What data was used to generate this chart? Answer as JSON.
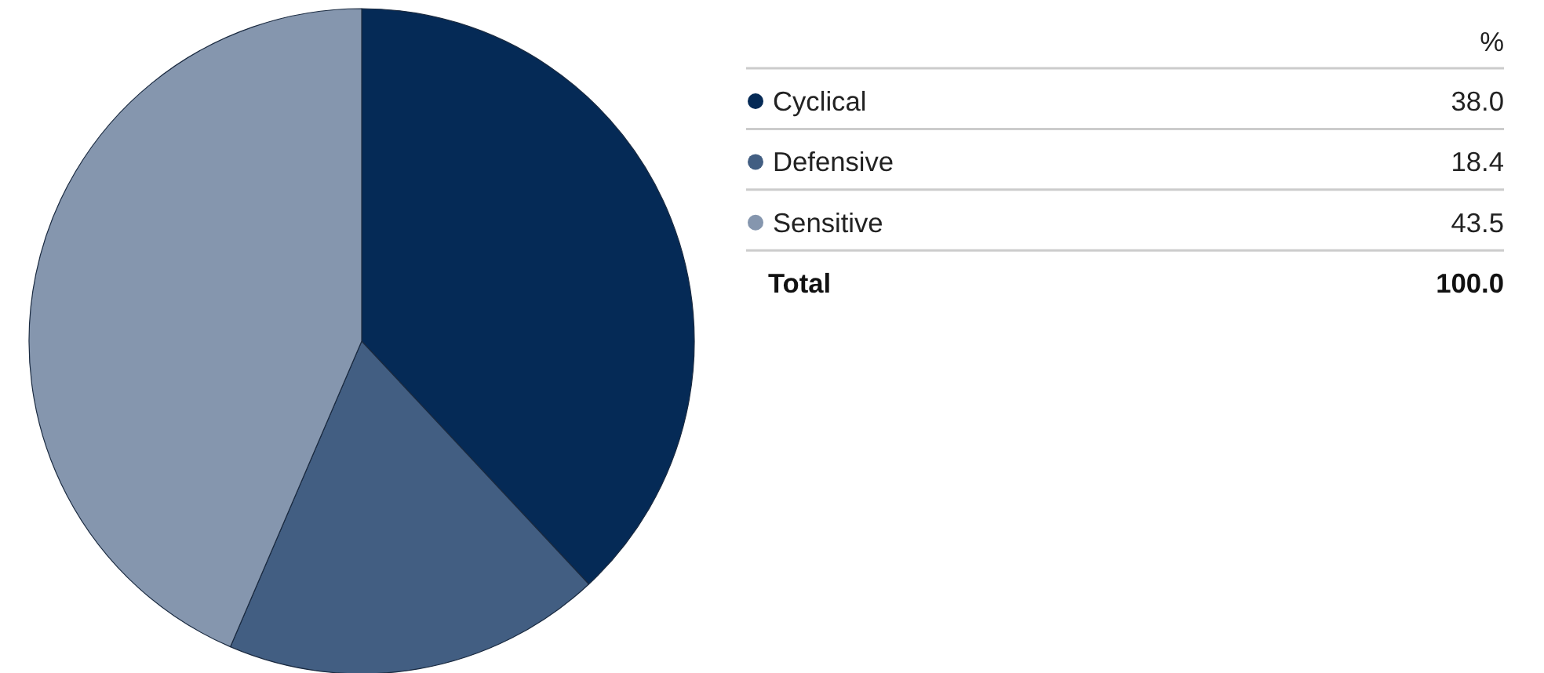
{
  "chart_data": {
    "type": "pie",
    "categories": [
      "Cyclical",
      "Defensive",
      "Sensitive"
    ],
    "values": [
      38.0,
      18.4,
      43.5
    ],
    "colors": [
      "#052a56",
      "#425e82",
      "#8596ae"
    ],
    "value_labels": [
      "38.0",
      "18.4",
      "43.5"
    ],
    "legend": "right",
    "annotations": [
      "%",
      "Total",
      "100.0"
    ]
  }
}
